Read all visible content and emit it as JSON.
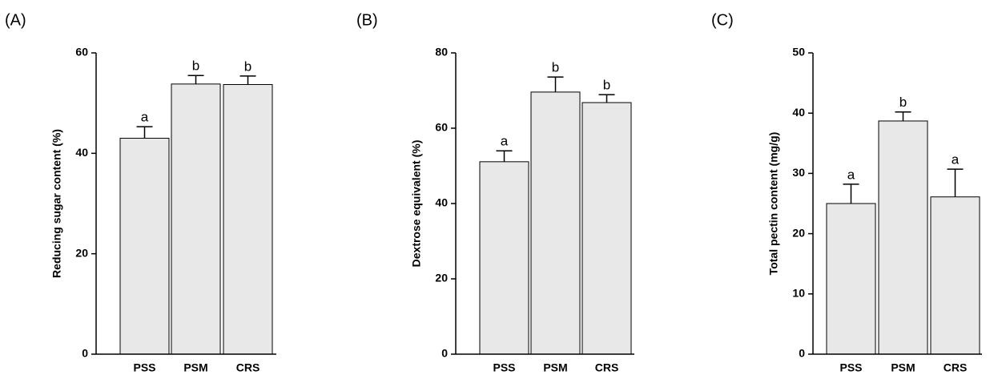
{
  "chart_data": [
    {
      "type": "bar",
      "panel_label": "(A)",
      "ylabel": "Reducing sugar content (%)",
      "categories": [
        "PSS",
        "PSM",
        "CRS"
      ],
      "values": [
        43,
        53.8,
        53.7
      ],
      "errors": [
        2.3,
        1.7,
        1.7
      ],
      "annotations": [
        "a",
        "b",
        "b"
      ],
      "color": "#e8e8e8",
      "ylim": [
        0,
        60
      ],
      "yticks": [
        0,
        20,
        40,
        60
      ],
      "grid": false
    },
    {
      "type": "bar",
      "panel_label": "(B)",
      "ylabel": "Dextrose equivalent (%)",
      "categories": [
        "PSS",
        "PSM",
        "CRS"
      ],
      "values": [
        51.1,
        69.6,
        66.8
      ],
      "errors": [
        2.9,
        4.0,
        2.1
      ],
      "annotations": [
        "a",
        "b",
        "b"
      ],
      "color": "#e8e8e8",
      "ylim": [
        0,
        80
      ],
      "yticks": [
        0,
        20,
        40,
        60,
        80
      ],
      "grid": false
    },
    {
      "type": "bar",
      "panel_label": "(C)",
      "ylabel": "Total pectin content (mg/g)",
      "categories": [
        "PSS",
        "PSM",
        "CRS"
      ],
      "values": [
        25.0,
        38.7,
        26.1
      ],
      "errors": [
        3.2,
        1.5,
        4.6
      ],
      "annotations": [
        "a",
        "b",
        "a"
      ],
      "color": "#e8e8e8",
      "ylim": [
        0,
        50
      ],
      "yticks": [
        0,
        10,
        20,
        30,
        40,
        50
      ],
      "grid": false
    }
  ]
}
